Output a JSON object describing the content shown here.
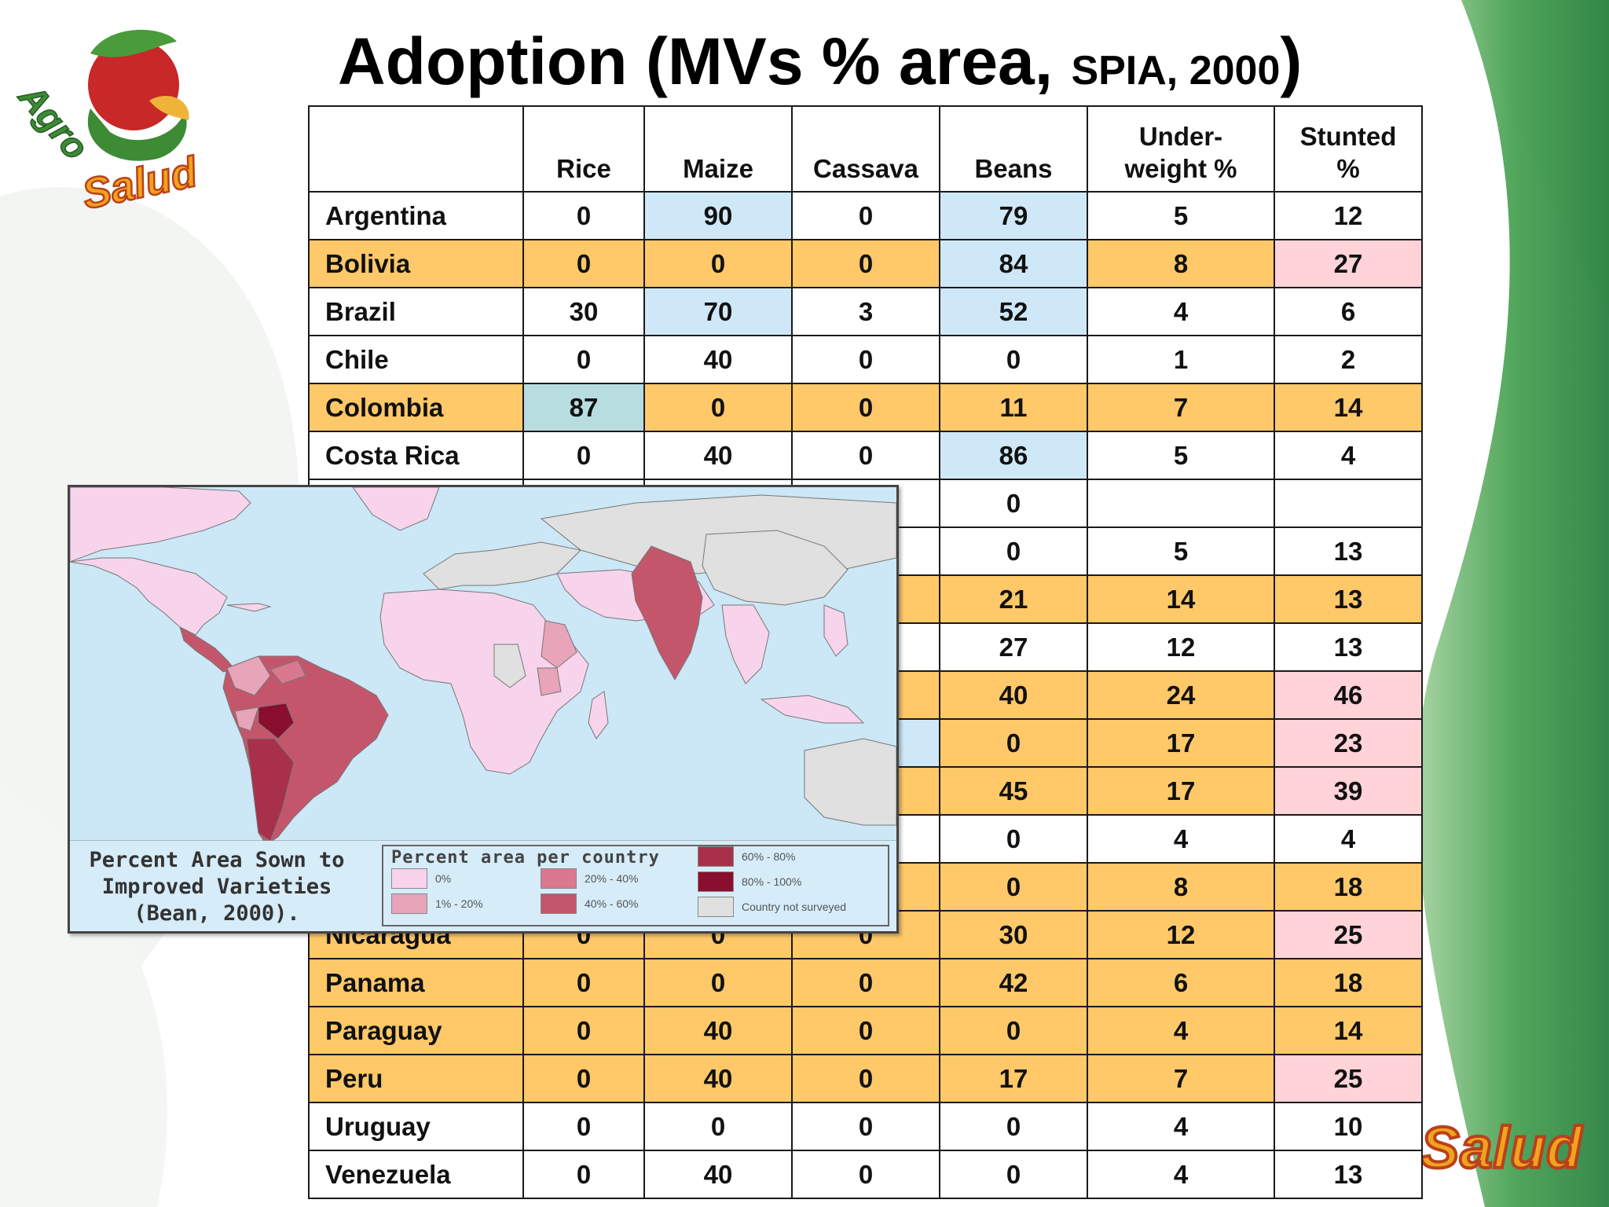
{
  "title": {
    "main": "Adoption (MVs % area, ",
    "small": "SPIA, 2000",
    "close": ")"
  },
  "logo": {
    "text_top": "Agro",
    "text_bottom": "Salud"
  },
  "table": {
    "headers": [
      "",
      "Rice",
      "Maize",
      "Cassava",
      "Beans",
      "Under-\nweight %",
      "Stunted\n%"
    ],
    "rows": [
      {
        "country": "Argentina",
        "values": [
          "0",
          "90",
          "0",
          "79",
          "5",
          "12"
        ]
      },
      {
        "country": "Bolivia",
        "values": [
          "0",
          "0",
          "0",
          "84",
          "8",
          "27"
        ]
      },
      {
        "country": "Brazil",
        "values": [
          "30",
          "70",
          "3",
          "52",
          "4",
          "6"
        ]
      },
      {
        "country": "Chile",
        "values": [
          "0",
          "40",
          "0",
          "0",
          "1",
          "2"
        ]
      },
      {
        "country": "Colombia",
        "values": [
          "87",
          "0",
          "0",
          "11",
          "7",
          "14"
        ]
      },
      {
        "country": "Costa Rica",
        "values": [
          "0",
          "40",
          "0",
          "86",
          "5",
          "4"
        ]
      },
      {
        "country": "",
        "values": [
          "",
          "",
          "",
          "0",
          "",
          ""
        ]
      },
      {
        "country": "",
        "values": [
          "",
          "",
          "",
          "0",
          "5",
          "13"
        ]
      },
      {
        "country": "",
        "values": [
          "",
          "",
          "",
          "21",
          "14",
          "13"
        ]
      },
      {
        "country": "",
        "values": [
          "",
          "",
          "",
          "27",
          "12",
          "13"
        ]
      },
      {
        "country": "",
        "values": [
          "",
          "",
          "",
          "40",
          "24",
          "46"
        ]
      },
      {
        "country": "",
        "values": [
          "",
          "",
          "",
          "0",
          "17",
          "23"
        ]
      },
      {
        "country": "",
        "values": [
          "",
          "",
          "",
          "45",
          "17",
          "39"
        ]
      },
      {
        "country": "",
        "values": [
          "",
          "",
          "",
          "0",
          "4",
          "4"
        ]
      },
      {
        "country": "",
        "values": [
          "",
          "",
          "",
          "0",
          "8",
          "18"
        ]
      },
      {
        "country": "Nicaragua",
        "values": [
          "0",
          "0",
          "0",
          "30",
          "12",
          "25"
        ]
      },
      {
        "country": "Panama",
        "values": [
          "0",
          "0",
          "0",
          "42",
          "6",
          "18"
        ]
      },
      {
        "country": "Paraguay",
        "values": [
          "0",
          "40",
          "0",
          "0",
          "4",
          "14"
        ]
      },
      {
        "country": "Peru",
        "values": [
          "0",
          "40",
          "0",
          "17",
          "7",
          "25"
        ]
      },
      {
        "country": "Uruguay",
        "values": [
          "0",
          "0",
          "0",
          "0",
          "4",
          "10"
        ]
      },
      {
        "country": "Venezuela",
        "values": [
          "0",
          "40",
          "0",
          "0",
          "4",
          "13"
        ]
      }
    ]
  },
  "map": {
    "caption": "Percent Area Sown to\nImproved Varieties\n(Bean, 2000).",
    "legend_title": "Percent area per country",
    "legend": [
      {
        "label": "0%",
        "color": "#f7d4ec"
      },
      {
        "label": "1% - 20%",
        "color": "#e8a4b8"
      },
      {
        "label": "20% - 40%",
        "color": "#d9788e"
      },
      {
        "label": "40% - 60%",
        "color": "#c4566c"
      },
      {
        "label": "60% - 80%",
        "color": "#a8304a"
      },
      {
        "label": "80% - 100%",
        "color": "#8a0e2e"
      },
      {
        "label": "Country not surveyed",
        "color": "#e0e0e0"
      }
    ]
  },
  "colors": {
    "orange": "#ffc869",
    "blue": "#cfe8f8",
    "teal": "#b7dde0",
    "pink": "#ffd3d8",
    "white": "#ffffff"
  }
}
